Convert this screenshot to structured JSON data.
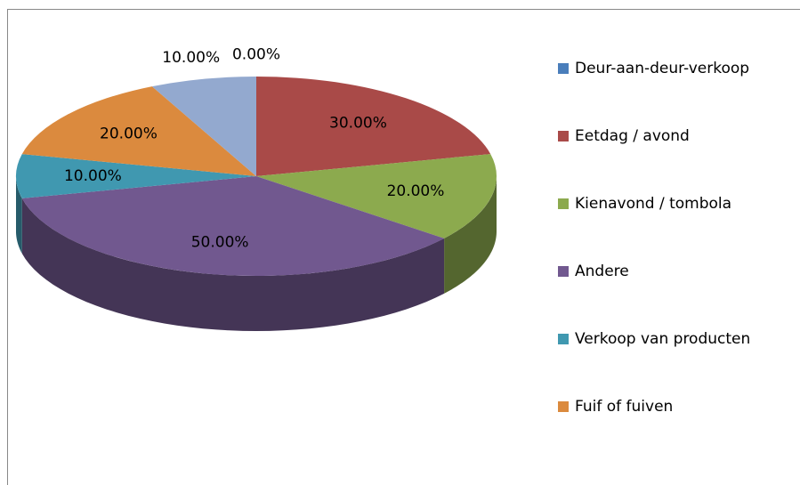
{
  "chart_data": {
    "type": "pie",
    "categories": [
      "Deur-aan-deur-verkoop",
      "Eetdag / avond",
      "Kienavond / tombola",
      "Andere",
      "Verkoop van producten",
      "Fuif of fuiven",
      null
    ],
    "values": [
      0,
      30,
      20,
      50,
      10,
      20,
      10
    ],
    "value_labels": [
      "0.00%",
      "30.00%",
      "20.00%",
      "50.00%",
      "10.00%",
      "20.00%",
      "10.00%"
    ],
    "colors": [
      "#4a7ebb",
      "#a94a48",
      "#8caa4e",
      "#71588f",
      "#4098b0",
      "#db8a3e",
      "#93a9cf"
    ],
    "legend": "right"
  }
}
